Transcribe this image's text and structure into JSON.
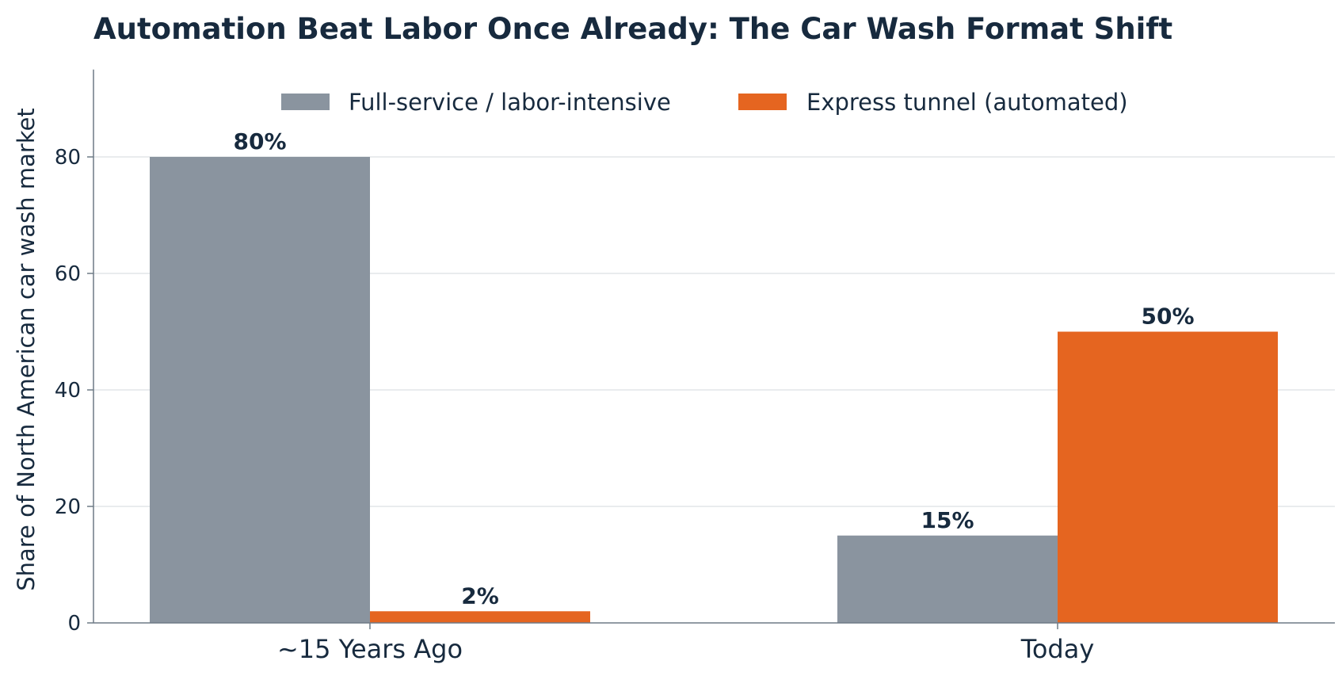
{
  "chart_data": {
    "type": "bar",
    "title": "Automation Beat Labor Once Already: The Car Wash Format Shift",
    "xlabel": "",
    "ylabel": "Share of North American car wash market",
    "categories": [
      "~15 Years Ago",
      "Today"
    ],
    "series": [
      {
        "name": "Full-service / labor-intensive",
        "values": [
          80,
          15
        ],
        "labels": [
          "80%",
          "15%"
        ],
        "color": "#8a949f"
      },
      {
        "name": "Express tunnel (automated)",
        "values": [
          2,
          50
        ],
        "labels": [
          "2%",
          "50%"
        ],
        "color": "#e56520"
      }
    ],
    "ylim": [
      0,
      95
    ],
    "yticks": [
      0,
      20,
      40,
      60,
      80
    ],
    "grid": "horizontal",
    "legend_position": "top-center"
  }
}
